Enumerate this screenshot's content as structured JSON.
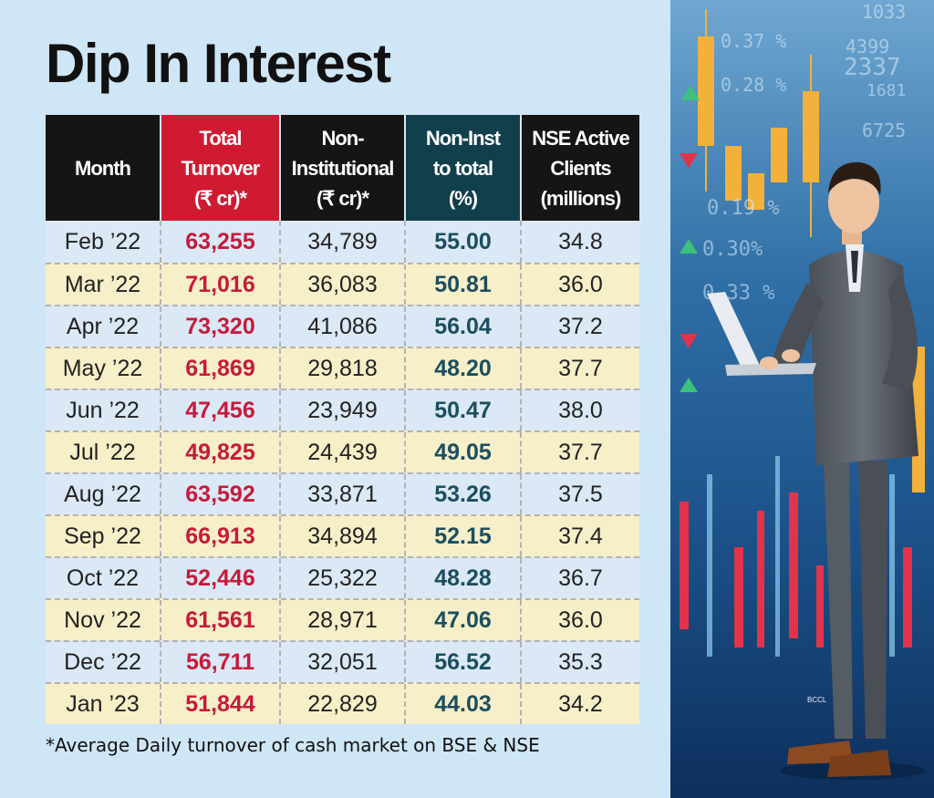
{
  "title": "Dip In Interest",
  "footnote": "*Average Daily turnover of cash market on BSE & NSE",
  "photo_credit": "BCCL",
  "background_numbers": [
    "0.37 %",
    "4399",
    "1033",
    "0.28 %",
    "2337",
    "1681",
    "6725",
    "0.19 %",
    "0.30%",
    "0.33 %"
  ],
  "colors": {
    "header_red": "#cf1a32",
    "header_teal": "#123f4c",
    "header_black": "#151515",
    "value_red": "#c71a3a",
    "value_teal": "#1b4e5f",
    "row_blue": "#dbe8f5",
    "row_yellow": "#f7efc8"
  },
  "chart_data": {
    "type": "table",
    "title": "Dip In Interest",
    "columns": [
      "Month",
      "Total\nTurnover\n(₹ cr)*",
      "Non-\nInstitutional\n(₹ cr)*",
      "Non-Inst\nto total\n(%)",
      "NSE Active\nClients\n(millions)"
    ],
    "rows": [
      [
        "Feb ’22",
        "63,255",
        "34,789",
        "55.00",
        "34.8"
      ],
      [
        "Mar ’22",
        "71,016",
        "36,083",
        "50.81",
        "36.0"
      ],
      [
        "Apr ’22",
        "73,320",
        "41,086",
        "56.04",
        "37.2"
      ],
      [
        "May ’22",
        "61,869",
        "29,818",
        "48.20",
        "37.7"
      ],
      [
        "Jun ’22",
        "47,456",
        "23,949",
        "50.47",
        "38.0"
      ],
      [
        "Jul ’22",
        "49,825",
        "24,439",
        "49.05",
        "37.7"
      ],
      [
        "Aug ’22",
        "63,592",
        "33,871",
        "53.26",
        "37.5"
      ],
      [
        "Sep ’22",
        "66,913",
        "34,894",
        "52.15",
        "37.4"
      ],
      [
        "Oct ’22",
        "52,446",
        "25,322",
        "48.28",
        "36.7"
      ],
      [
        "Nov ’22",
        "61,561",
        "28,971",
        "47.06",
        "36.0"
      ],
      [
        "Dec ’22",
        "56,711",
        "32,051",
        "56.52",
        "35.3"
      ],
      [
        "Jan ’23",
        "51,844",
        "22,829",
        "44.03",
        "34.2"
      ]
    ],
    "footnote": "*Average Daily turnover of cash market on BSE & NSE"
  }
}
